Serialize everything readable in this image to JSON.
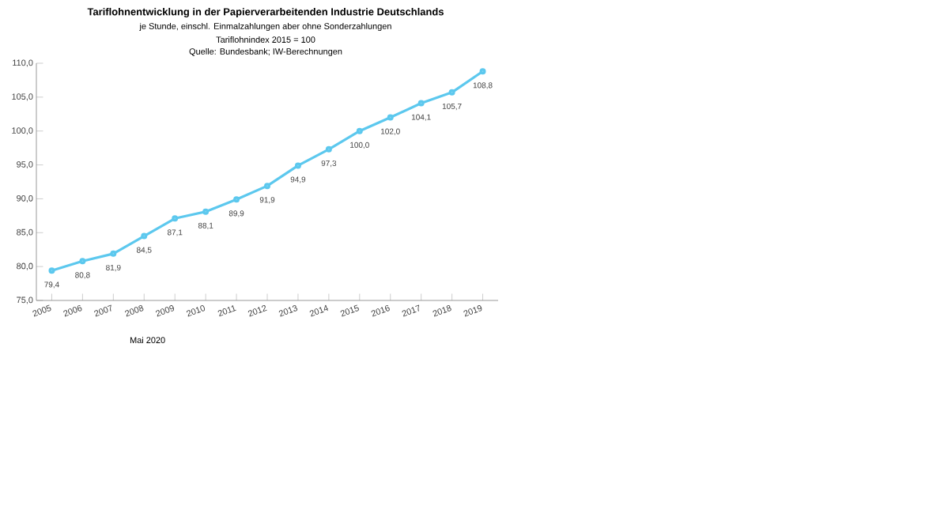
{
  "chart_data": {
    "type": "line",
    "title": "Tariflohnentwicklung in der Papierverarbeitenden Industrie Deutschlands",
    "subtitle": "je Stunde, einschl. Einmalzahlungen aber ohne Sonderzahlungen",
    "annotations": [
      "Tariflohnindex 2015 = 100",
      "Quelle: Bundesbank; IW-Berechnungen",
      "Mai 2020"
    ],
    "categories": [
      "2005",
      "2006",
      "2007",
      "2008",
      "2009",
      "2010",
      "2011",
      "2012",
      "2013",
      "2014",
      "2015",
      "2016",
      "2017",
      "2018",
      "2019"
    ],
    "series": [
      {
        "color": "#5cc8ee",
        "values": [
          79.4,
          80.8,
          81.9,
          84.5,
          87.1,
          88.1,
          89.9,
          91.9,
          94.9,
          97.3,
          100.0,
          102.0,
          104.1,
          105.7,
          108.8
        ],
        "value_labels": [
          "79,4",
          "80,8",
          "81,9",
          "84,5",
          "87,1",
          "88,1",
          "89,9",
          "91,9",
          "94,9",
          "97,3",
          "100,0",
          "102,0",
          "104,1",
          "105,7",
          "108,8"
        ]
      }
    ],
    "ylim": [
      75,
      110
    ],
    "yticks": [
      {
        "value": 75,
        "label": "75,0"
      },
      {
        "value": 80,
        "label": "80,0"
      },
      {
        "value": 85,
        "label": "85,0"
      },
      {
        "value": 90,
        "label": "90,0"
      },
      {
        "value": 95,
        "label": "95,0"
      },
      {
        "value": 100,
        "label": "100,0"
      },
      {
        "value": 105,
        "label": "105,0"
      },
      {
        "value": 110,
        "label": "110,0"
      }
    ],
    "marker": "circle",
    "line_style": "solid"
  }
}
